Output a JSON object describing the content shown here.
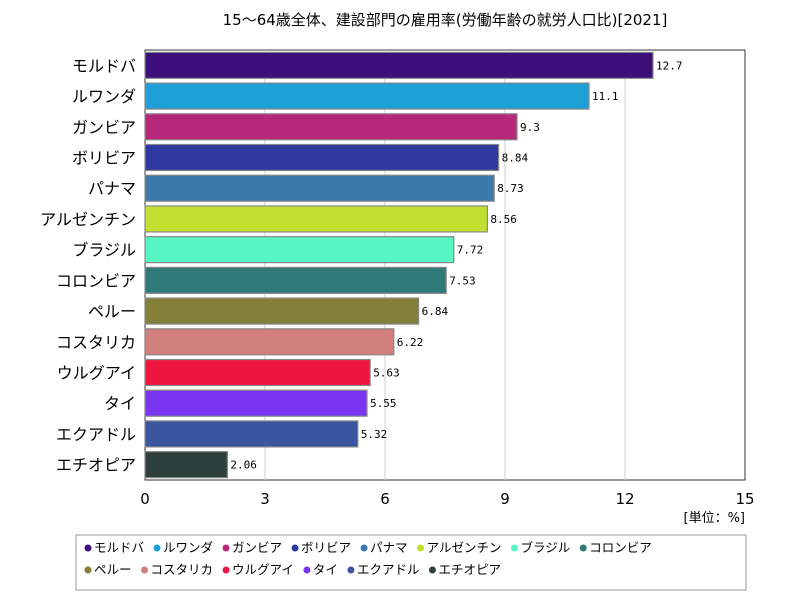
{
  "chart_data": {
    "type": "bar",
    "orientation": "horizontal",
    "title": "15～64歳全体、建設部門の雇用率(労働年齢の就労人口比)[2021]",
    "unit_label": "[単位：%]",
    "xlim": [
      0,
      15
    ],
    "xticks": [
      "0",
      "3",
      "6",
      "9",
      "12",
      "15"
    ],
    "grid": true,
    "legend_position": "bottom",
    "categories": [
      "モルドバ",
      "ルワンダ",
      "ガンビア",
      "ボリビア",
      "パナマ",
      "アルゼンチン",
      "ブラジル",
      "コロンビア",
      "ペルー",
      "コスタリカ",
      "ウルグアイ",
      "タイ",
      "エクアドル",
      "エチオピア"
    ],
    "values": [
      12.7,
      11.1,
      9.3,
      8.84,
      8.73,
      8.56,
      7.72,
      7.53,
      6.84,
      6.22,
      5.63,
      5.55,
      5.32,
      2.06
    ],
    "value_labels": [
      "12.7",
      "11.1",
      "9.3",
      "8.84",
      "8.73",
      "8.56",
      "7.72",
      "7.53",
      "6.84",
      "6.22",
      "5.63",
      "5.55",
      "5.32",
      "2.06"
    ],
    "colors": [
      "#3d0f7a",
      "#1e9fd6",
      "#b5287a",
      "#2f3aa0",
      "#3c78a8",
      "#bfe02e",
      "#57f5c2",
      "#2f7a78",
      "#84803a",
      "#d07f7d",
      "#ee1640",
      "#7a36f2",
      "#3b55a0",
      "#2d403c"
    ]
  }
}
